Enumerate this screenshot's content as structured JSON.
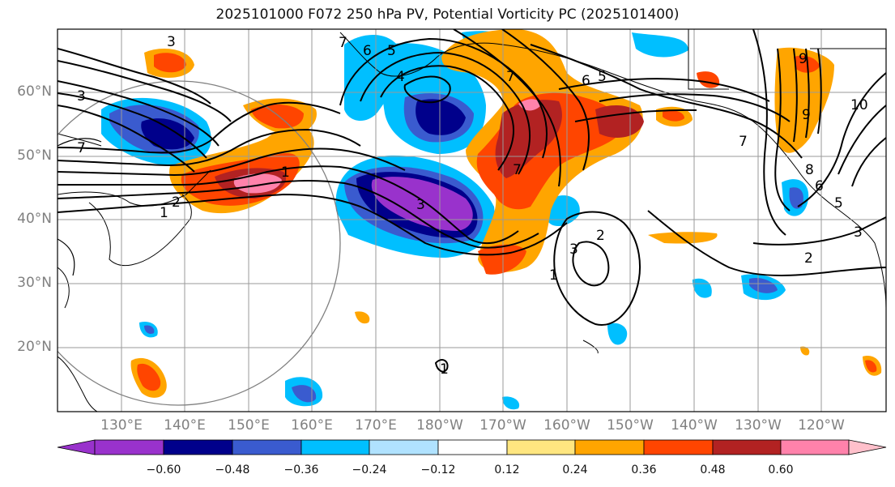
{
  "title": "2025101000 F072 250 hPa PV, Potential Vorticity PC (2025101400)",
  "lat_labels": [
    "60°N",
    "50°N",
    "40°N",
    "30°N",
    "20°N"
  ],
  "lon_labels": [
    "130°E",
    "140°E",
    "150°E",
    "160°E",
    "170°E",
    "180°W",
    "170°W",
    "160°W",
    "150°W",
    "140°W",
    "130°W",
    "120°W"
  ],
  "colorbar": {
    "ticks": [
      "−0.60",
      "−0.48",
      "−0.36",
      "−0.24",
      "−0.12",
      "0.12",
      "0.24",
      "0.36",
      "0.48",
      "0.60"
    ],
    "colors": [
      "#9932cc",
      "#00008b",
      "#3a5bcf",
      "#00bfff",
      "#b0e2ff",
      "#ffffff",
      "#ffe680",
      "#ffa500",
      "#ff4500",
      "#b22222",
      "#ff82ab",
      "#ffc0cb"
    ]
  },
  "contour_labels": [
    "3",
    "7",
    "5",
    "6",
    "4",
    "10",
    "2",
    "1",
    "8",
    "9"
  ],
  "fill_colors": {
    "neg_strong": "#9932cc",
    "neg_dark": "#00008b",
    "neg_mid": "#3a5bcf",
    "neg_light": "#00bfff",
    "pos_light": "#ffe680",
    "pos_mid": "#ffa500",
    "pos_strong": "#ff4500",
    "pos_dark": "#b22222",
    "pos_max": "#ff82ab"
  }
}
